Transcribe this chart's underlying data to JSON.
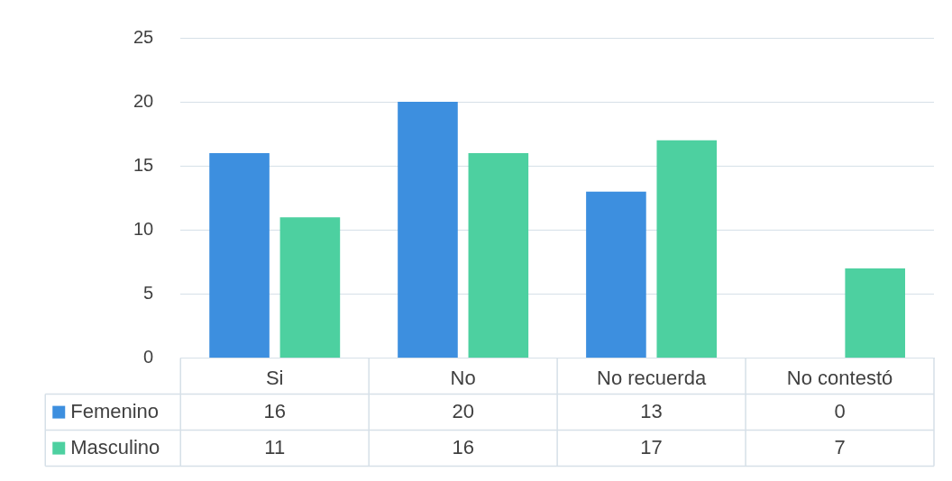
{
  "chart_data": {
    "type": "bar",
    "categories": [
      "Si",
      "No",
      "No recuerda",
      "No contestó"
    ],
    "series": [
      {
        "name": "Femenino",
        "color": "#3d8fdf",
        "values": [
          16,
          20,
          13,
          0
        ]
      },
      {
        "name": "Masculino",
        "color": "#4dd0a0",
        "values": [
          11,
          16,
          17,
          7
        ]
      }
    ],
    "ylim": [
      0,
      25
    ],
    "yticks": [
      0,
      5,
      10,
      15,
      20,
      25
    ],
    "grid": "y",
    "legend": "bottom",
    "data_labels": true
  }
}
